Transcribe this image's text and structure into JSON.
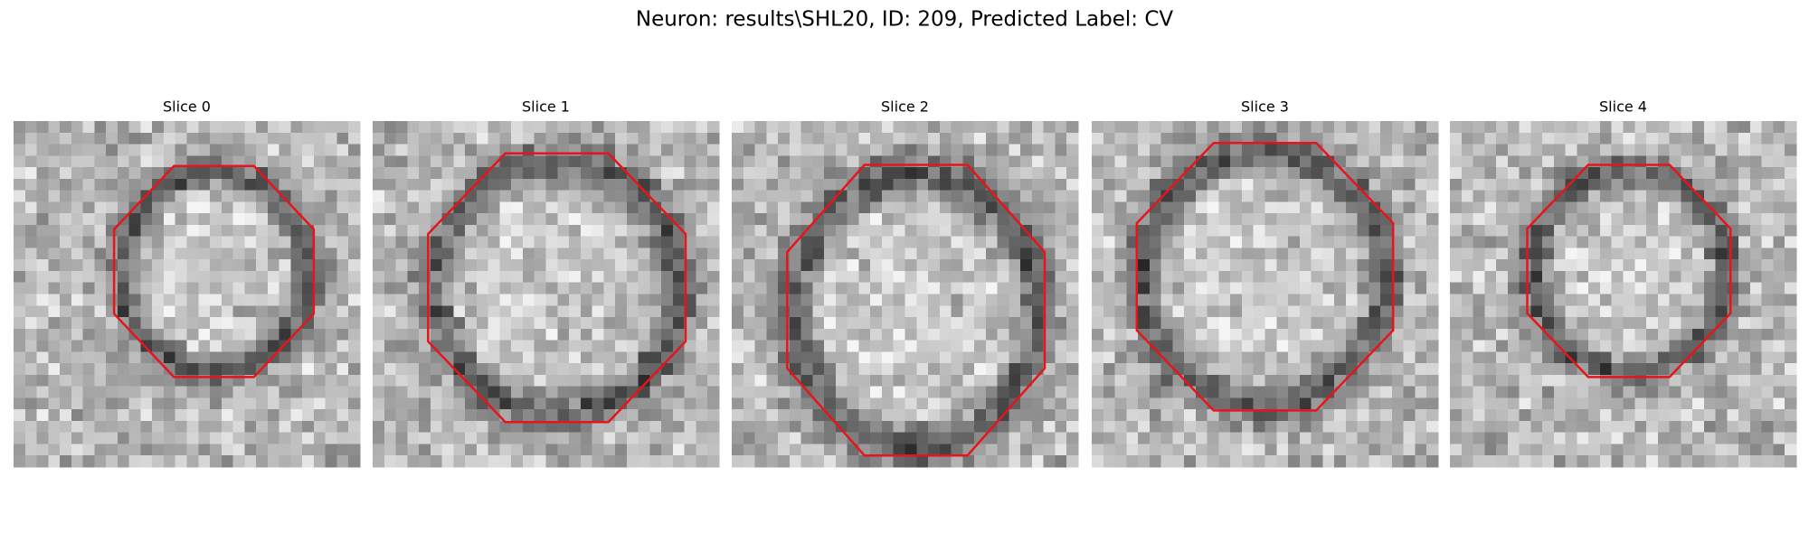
{
  "title": "Neuron: results\\SHL20, ID: 209, Predicted Label: CV",
  "panels": [
    {
      "title": "Slice 0"
    },
    {
      "title": "Slice 1"
    },
    {
      "title": "Slice 2"
    },
    {
      "title": "Slice 3"
    },
    {
      "title": "Slice 4"
    }
  ]
}
